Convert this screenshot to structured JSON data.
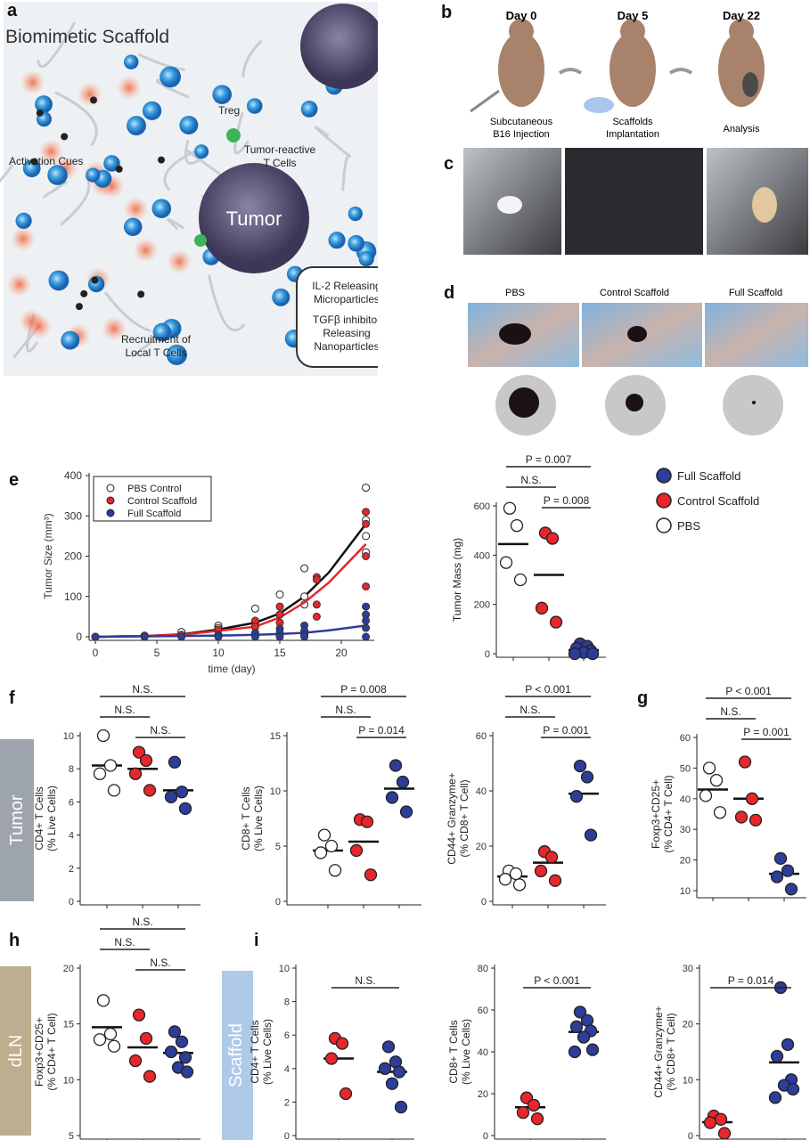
{
  "panel_letters": {
    "a": "a",
    "b": "b",
    "c": "c",
    "d": "d",
    "e": "e",
    "f": "f",
    "g": "g",
    "h": "h",
    "i": "i"
  },
  "panel_a": {
    "title": "Biomimetic Scaffold",
    "treg": "Treg",
    "tumor_reactive": [
      "Tumor-reactive",
      "T Cells"
    ],
    "activation_cues": "Activation Cues",
    "tumor": "Tumor",
    "recruitment": [
      "Recruitment of",
      "Local T Cells"
    ],
    "inset": [
      "IL-2 Releasing",
      "Microparticles",
      "TGFβ inhibitor",
      "Releasing",
      "Nanoparticles"
    ]
  },
  "panel_b": {
    "days": [
      "Day 0",
      "Day 5",
      "Day 22"
    ],
    "steps": [
      [
        "Subcutaneous",
        "B16 Injection"
      ],
      [
        "Scaffolds",
        "Implantation"
      ],
      [
        "Analysis"
      ]
    ]
  },
  "panel_d": {
    "labels": [
      "PBS",
      "Control Scaffold",
      "Full Scaffold"
    ]
  },
  "side_labels": {
    "tumor": "Tumor",
    "dln": "dLN",
    "scaffold": "Scaffold"
  },
  "colors": {
    "PBS": "#ffffff",
    "Control Scaffold": "#e8262b",
    "Full Scaffold": "#2d3d99",
    "tumor_band": "#9ea4ac",
    "dln_band": "#bcae8e",
    "scaffold_band": "#afc9e8"
  },
  "legend_right": [
    "Full Scaffold",
    "Control Scaffold",
    "PBS"
  ],
  "chart_data": [
    {
      "id": "e_growth",
      "type": "line",
      "xlabel": "time (day)",
      "ylabel": "Tumor Size (mm³)",
      "xlim": [
        0,
        23
      ],
      "ylim": [
        0,
        400
      ],
      "xticks": [
        0,
        5,
        10,
        15,
        20
      ],
      "yticks": [
        0,
        100,
        200,
        300,
        400
      ],
      "legend": [
        "PBS Control",
        "Control Scaffold",
        "Full Scaffold"
      ],
      "legend_position": "top-left",
      "series": [
        {
          "name": "PBS Control",
          "points": [
            [
              0,
              0
            ],
            [
              4,
              2
            ],
            [
              7,
              12
            ],
            [
              10,
              28
            ],
            [
              10,
              22
            ],
            [
              13,
              70
            ],
            [
              13,
              35
            ],
            [
              15,
              105
            ],
            [
              15,
              55
            ],
            [
              17,
              170
            ],
            [
              17,
              100
            ],
            [
              17,
              80
            ],
            [
              22,
              370
            ],
            [
              22,
              290
            ],
            [
              22,
              250
            ],
            [
              22,
              210
            ]
          ],
          "fit": [
            [
              0,
              0
            ],
            [
              4,
              2
            ],
            [
              7,
              6
            ],
            [
              10,
              18
            ],
            [
              13,
              35
            ],
            [
              15,
              58
            ],
            [
              17,
              100
            ],
            [
              19,
              160
            ],
            [
              22,
              280
            ]
          ]
        },
        {
          "name": "Control Scaffold",
          "points": [
            [
              0,
              0
            ],
            [
              4,
              3
            ],
            [
              7,
              5
            ],
            [
              10,
              18
            ],
            [
              13,
              40
            ],
            [
              13,
              25
            ],
            [
              15,
              75
            ],
            [
              15,
              55
            ],
            [
              15,
              35
            ],
            [
              18,
              148
            ],
            [
              18,
              142
            ],
            [
              18,
              80
            ],
            [
              18,
              50
            ],
            [
              22,
              310
            ],
            [
              22,
              280
            ],
            [
              22,
              200
            ],
            [
              22,
              125
            ]
          ],
          "fit": [
            [
              0,
              0
            ],
            [
              4,
              2
            ],
            [
              7,
              5
            ],
            [
              10,
              15
            ],
            [
              13,
              25
            ],
            [
              15,
              48
            ],
            [
              17,
              85
            ],
            [
              19,
              135
            ],
            [
              22,
              230
            ]
          ]
        },
        {
          "name": "Full Scaffold",
          "points": [
            [
              0,
              0
            ],
            [
              4,
              0
            ],
            [
              7,
              0
            ],
            [
              10,
              5
            ],
            [
              10,
              0
            ],
            [
              13,
              10
            ],
            [
              13,
              0
            ],
            [
              15,
              20
            ],
            [
              15,
              10
            ],
            [
              15,
              0
            ],
            [
              17,
              28
            ],
            [
              17,
              15
            ],
            [
              17,
              5
            ],
            [
              17,
              0
            ],
            [
              22,
              75
            ],
            [
              22,
              55
            ],
            [
              22,
              40
            ],
            [
              22,
              22
            ],
            [
              22,
              0
            ]
          ],
          "fit": [
            [
              0,
              0
            ],
            [
              4,
              1
            ],
            [
              7,
              2
            ],
            [
              10,
              3
            ],
            [
              13,
              5
            ],
            [
              15,
              7
            ],
            [
              17,
              10
            ],
            [
              19,
              16
            ],
            [
              22,
              28
            ]
          ]
        }
      ]
    },
    {
      "id": "e_mass",
      "type": "scatter",
      "ylabel": [
        "Tumor Mass (mg)"
      ],
      "ylim": [
        0,
        600
      ],
      "yticks": [
        0,
        200,
        400,
        600
      ],
      "groups": [
        {
          "name": "PBS",
          "values": [
            590,
            520,
            370,
            300
          ],
          "mean": 445
        },
        {
          "name": "Control Scaffold",
          "values": [
            490,
            468,
            185,
            128
          ],
          "mean": 320
        },
        {
          "name": "Full Scaffold",
          "values": [
            40,
            30,
            22,
            12,
            5,
            0,
            0
          ],
          "mean": 15
        }
      ],
      "comparisons": [
        {
          "label": "P = 0.007",
          "between": [
            0,
            2
          ]
        },
        {
          "label": "N.S.",
          "between": [
            0,
            1
          ]
        },
        {
          "label": "P = 0.008",
          "between": [
            1,
            2
          ]
        }
      ]
    },
    {
      "id": "f_cd4",
      "type": "scatter",
      "ylabel": [
        "CD4+ T Cells",
        "(% Live Cells)"
      ],
      "ylim": [
        0,
        10
      ],
      "yticks": [
        0,
        2,
        4,
        6,
        8,
        10
      ],
      "groups": [
        {
          "name": "PBS",
          "values": [
            10,
            8.2,
            7.7,
            6.7
          ],
          "mean": 8.2
        },
        {
          "name": "Control Scaffold",
          "values": [
            9,
            8.5,
            7.7,
            6.7
          ],
          "mean": 8.0
        },
        {
          "name": "Full Scaffold",
          "values": [
            8.4,
            6.6,
            6.3,
            5.6
          ],
          "mean": 6.7
        }
      ],
      "comparisons": [
        {
          "label": "N.S.",
          "between": [
            0,
            2
          ]
        },
        {
          "label": "N.S.",
          "between": [
            0,
            1
          ]
        },
        {
          "label": "N.S.",
          "between": [
            1,
            2
          ]
        }
      ]
    },
    {
      "id": "f_cd8",
      "type": "scatter",
      "ylabel": [
        "CD8+ T Cells",
        "(% Live Cells)"
      ],
      "ylim": [
        0,
        15
      ],
      "yticks": [
        0,
        5,
        10,
        15
      ],
      "groups": [
        {
          "name": "PBS",
          "values": [
            6.0,
            5.0,
            4.4,
            2.8
          ],
          "mean": 4.6
        },
        {
          "name": "Control Scaffold",
          "values": [
            7.4,
            7.2,
            4.6,
            2.4
          ],
          "mean": 5.4
        },
        {
          "name": "Full Scaffold",
          "values": [
            12.3,
            10.8,
            9.4,
            8.1
          ],
          "mean": 10.2
        }
      ],
      "comparisons": [
        {
          "label": "P = 0.008",
          "between": [
            0,
            2
          ]
        },
        {
          "label": "N.S.",
          "between": [
            0,
            1
          ]
        },
        {
          "label": "P = 0.014",
          "between": [
            1,
            2
          ]
        }
      ]
    },
    {
      "id": "f_cd44",
      "type": "scatter",
      "ylabel": [
        "CD44+ Granzyme+",
        "(% CD8+ T Cell)"
      ],
      "ylim": [
        0,
        60
      ],
      "yticks": [
        0,
        20,
        40,
        60
      ],
      "groups": [
        {
          "name": "PBS",
          "values": [
            11,
            10,
            8,
            6
          ],
          "mean": 9
        },
        {
          "name": "Control Scaffold",
          "values": [
            18,
            16,
            11,
            7.5
          ],
          "mean": 14
        },
        {
          "name": "Full Scaffold",
          "values": [
            49,
            45,
            38,
            24
          ],
          "mean": 39
        }
      ],
      "comparisons": [
        {
          "label": "P < 0.001",
          "between": [
            0,
            2
          ]
        },
        {
          "label": "N.S.",
          "between": [
            0,
            1
          ]
        },
        {
          "label": "P = 0.001",
          "between": [
            1,
            2
          ]
        }
      ]
    },
    {
      "id": "g_foxp3",
      "type": "scatter",
      "ylabel": [
        "Foxp3+CD25+",
        "(% CD4+ T Cell)"
      ],
      "ylim": [
        10,
        60
      ],
      "yticks": [
        10,
        20,
        30,
        40,
        50,
        60
      ],
      "groups": [
        {
          "name": "PBS",
          "values": [
            50,
            46,
            41,
            35.5
          ],
          "mean": 43
        },
        {
          "name": "Control Scaffold",
          "values": [
            52,
            40,
            34,
            33
          ],
          "mean": 40
        },
        {
          "name": "Full Scaffold",
          "values": [
            20.5,
            16.5,
            14.5,
            10.5
          ],
          "mean": 15.5
        }
      ],
      "comparisons": [
        {
          "label": "P < 0.001",
          "between": [
            0,
            2
          ]
        },
        {
          "label": "N.S.",
          "between": [
            0,
            1
          ]
        },
        {
          "label": "P = 0.001",
          "between": [
            1,
            2
          ]
        }
      ]
    },
    {
      "id": "h_foxp3",
      "type": "scatter",
      "ylabel": [
        "Foxp3+CD25+",
        "(% CD4+ T Cell)"
      ],
      "ylim": [
        5,
        20
      ],
      "yticks": [
        5,
        10,
        15,
        20
      ],
      "groups": [
        {
          "name": "PBS",
          "values": [
            17.1,
            14.1,
            13.6,
            13.0
          ],
          "mean": 14.7
        },
        {
          "name": "Control Scaffold",
          "values": [
            15.8,
            13.7,
            11.7,
            10.3
          ],
          "mean": 12.9
        },
        {
          "name": "Full Scaffold",
          "values": [
            14.3,
            13.4,
            12.5,
            12.0,
            11.1,
            10.7
          ],
          "mean": 12.4
        }
      ],
      "comparisons": [
        {
          "label": "N.S.",
          "between": [
            0,
            2
          ]
        },
        {
          "label": "N.S.",
          "between": [
            0,
            1
          ]
        },
        {
          "label": "N.S.",
          "between": [
            1,
            2
          ]
        }
      ]
    },
    {
      "id": "i_cd4",
      "type": "scatter",
      "ylabel": [
        "CD4+ T Cells",
        "(% Live Cells)"
      ],
      "ylim": [
        0,
        10
      ],
      "yticks": [
        0,
        2,
        4,
        6,
        8,
        10
      ],
      "groups": [
        {
          "name": "Control Scaffold",
          "values": [
            5.8,
            5.5,
            4.6,
            2.5
          ],
          "mean": 4.6
        },
        {
          "name": "Full Scaffold",
          "values": [
            5.3,
            4.4,
            4.0,
            3.8,
            3.1,
            1.7
          ],
          "mean": 3.8
        }
      ],
      "comparisons": [
        {
          "label": "N.S.",
          "between": [
            0,
            1
          ]
        }
      ]
    },
    {
      "id": "i_cd8",
      "type": "scatter",
      "ylabel": [
        "CD8+ T Cells",
        "(% Live Cells)"
      ],
      "ylim": [
        0,
        80
      ],
      "yticks": [
        0,
        20,
        40,
        60,
        80
      ],
      "groups": [
        {
          "name": "Control Scaffold",
          "values": [
            18,
            14.5,
            11,
            8
          ],
          "mean": 13.5
        },
        {
          "name": "Full Scaffold",
          "values": [
            59,
            55,
            52,
            50,
            47,
            41,
            40
          ],
          "mean": 49.5
        }
      ],
      "comparisons": [
        {
          "label": "P < 0.001",
          "between": [
            0,
            1
          ]
        }
      ]
    },
    {
      "id": "i_cd44",
      "type": "scatter",
      "ylabel": [
        "CD44+ Granzyme+",
        "(% CD8+ T Cell)"
      ],
      "ylim": [
        0,
        30
      ],
      "yticks": [
        0,
        10,
        20,
        30
      ],
      "groups": [
        {
          "name": "Control Scaffold",
          "values": [
            3.5,
            2.9,
            2.3,
            0.4
          ],
          "mean": 2.4
        },
        {
          "name": "Full Scaffold",
          "values": [
            26.5,
            16.3,
            14.2,
            10,
            9,
            8.3,
            6.8
          ],
          "mean": 13.1
        }
      ],
      "comparisons": [
        {
          "label": "P = 0.014",
          "between": [
            0,
            1
          ]
        }
      ]
    }
  ]
}
